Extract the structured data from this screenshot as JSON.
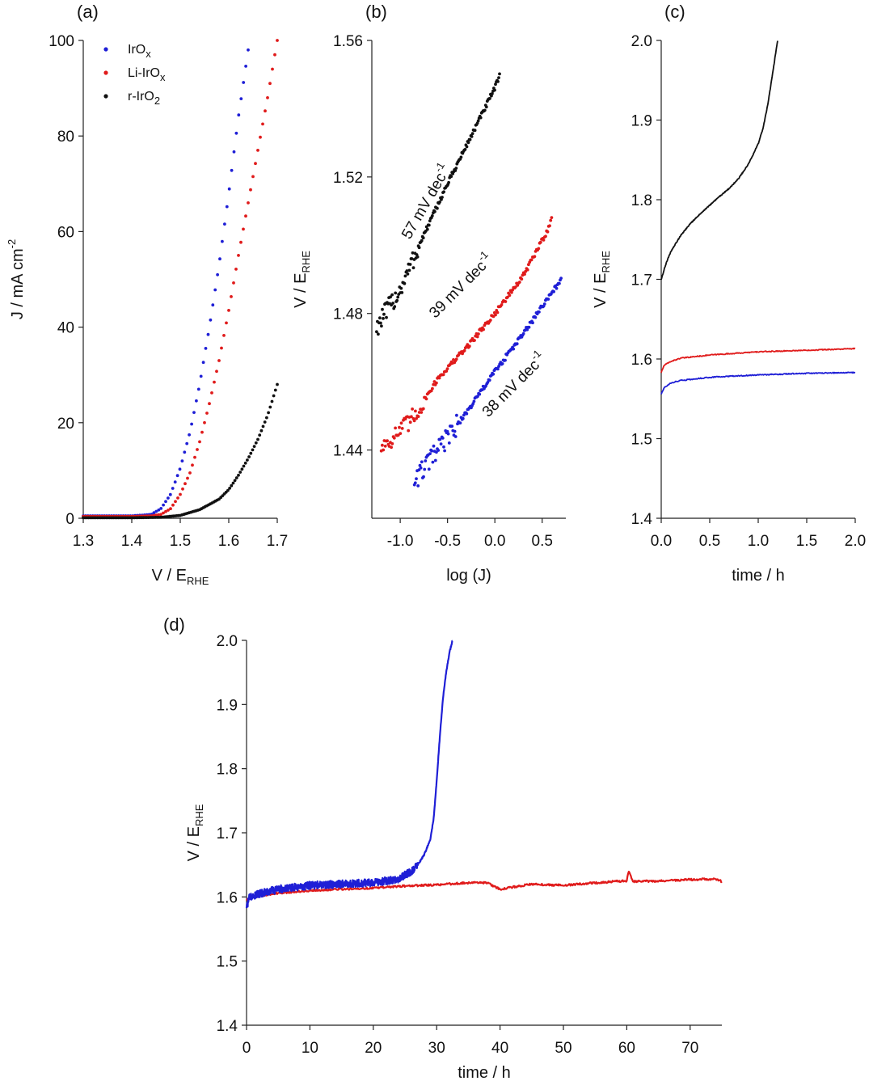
{
  "figure": {
    "colors": {
      "IrOx": "#1f1fd6",
      "Li-IrOx": "#e01b1b",
      "r-IrO2": "#111111"
    }
  },
  "chart_data": [
    {
      "id": "a",
      "panel_label": "(a)",
      "type": "scatter",
      "xlabel": {
        "main": "V / E",
        "sub": "RHE"
      },
      "ylabel": {
        "main": "J / mA cm",
        "sup": "-2"
      },
      "xlim": [
        1.3,
        1.7
      ],
      "ylim": [
        0,
        100
      ],
      "xticks": [
        1.3,
        1.4,
        1.5,
        1.6,
        1.7
      ],
      "xtick_labels": [
        "1.3",
        "1.4",
        "1.5",
        "1.6",
        "1.7"
      ],
      "yticks": [
        0,
        20,
        40,
        60,
        80,
        100
      ],
      "ytick_labels": [
        "0",
        "20",
        "40",
        "60",
        "80",
        "100"
      ],
      "legend_position": "top-left",
      "series": [
        {
          "key": "IrOx",
          "name": "IrO",
          "name_sub": "x",
          "x": [
            1.3,
            1.35,
            1.4,
            1.44,
            1.46,
            1.48,
            1.5,
            1.52,
            1.54,
            1.56,
            1.58,
            1.6,
            1.62,
            1.64
          ],
          "y": [
            0.5,
            0.5,
            0.5,
            0.8,
            2.0,
            5.0,
            10.5,
            18.0,
            28.0,
            40.0,
            53.0,
            68.0,
            84.0,
            98.0
          ]
        },
        {
          "key": "Li-IrOx",
          "name": "Li-IrO",
          "name_sub": "x",
          "x": [
            1.3,
            1.35,
            1.4,
            1.44,
            1.46,
            1.48,
            1.5,
            1.52,
            1.54,
            1.56,
            1.58,
            1.6,
            1.62,
            1.64,
            1.66,
            1.68,
            1.7
          ],
          "y": [
            0.4,
            0.4,
            0.4,
            0.5,
            0.8,
            2.0,
            5.0,
            9.5,
            16.0,
            24.0,
            33.0,
            43.5,
            55.0,
            66.0,
            77.0,
            88.0,
            100.0
          ]
        },
        {
          "key": "r-IrO2",
          "name": "r-IrO",
          "name_sub": "2",
          "x": [
            1.3,
            1.4,
            1.46,
            1.5,
            1.54,
            1.58,
            1.6,
            1.62,
            1.64,
            1.66,
            1.68,
            1.7
          ],
          "y": [
            0.1,
            0.1,
            0.2,
            0.6,
            1.8,
            4.0,
            6.0,
            9.0,
            12.5,
            16.5,
            21.5,
            28.0
          ]
        }
      ]
    },
    {
      "id": "b",
      "panel_label": "(b)",
      "type": "scatter",
      "xlabel": {
        "main": "log (J)"
      },
      "ylabel": {
        "main": "V / E",
        "sub": "RHE"
      },
      "xlim": [
        -1.3,
        0.75
      ],
      "ylim": [
        1.42,
        1.56
      ],
      "xticks": [
        -1.0,
        -0.5,
        0.0,
        0.5
      ],
      "xtick_labels": [
        "-1.0",
        "-0.5",
        "0.0",
        "0.5"
      ],
      "yticks": [
        1.44,
        1.48,
        1.52,
        1.56
      ],
      "ytick_labels": [
        "1.44",
        "1.48",
        "1.52",
        "1.56"
      ],
      "series": [
        {
          "key": "r-IrO2",
          "x": [
            -1.25,
            -1.0,
            -0.75,
            -0.5,
            -0.25,
            0.0,
            0.05
          ],
          "y": [
            1.476,
            1.487,
            1.503,
            1.518,
            1.532,
            1.546,
            1.55
          ]
        },
        {
          "key": "Li-IrOx",
          "x": [
            -1.2,
            -0.9,
            -0.6,
            -0.3,
            0.0,
            0.3,
            0.55,
            0.6
          ],
          "y": [
            1.441,
            1.448,
            1.461,
            1.47,
            1.48,
            1.491,
            1.504,
            1.508
          ]
        },
        {
          "key": "IrOx",
          "x": [
            -0.85,
            -0.6,
            -0.3,
            0.0,
            0.3,
            0.55,
            0.7
          ],
          "y": [
            1.431,
            1.44,
            1.451,
            1.463,
            1.474,
            1.484,
            1.49
          ]
        }
      ],
      "annotations": [
        {
          "text": "57 mV dec",
          "sup": "-1",
          "color_key": "r-IrO2",
          "x": -0.68,
          "y": 1.512,
          "rotate": -60
        },
        {
          "text": "39 mV dec",
          "sup": "-1",
          "color_key": "Li-IrOx",
          "x": -0.32,
          "y": 1.487,
          "rotate": -45
        },
        {
          "text": "38 mV dec",
          "sup": "-1",
          "color_key": "IrOx",
          "x": 0.24,
          "y": 1.458,
          "rotate": -45
        }
      ]
    },
    {
      "id": "c",
      "panel_label": "(c)",
      "type": "line",
      "xlabel": {
        "main": "time / h"
      },
      "ylabel": {
        "main": "V / E",
        "sub": "RHE"
      },
      "xlim": [
        0,
        2.0
      ],
      "ylim": [
        1.4,
        2.0
      ],
      "xticks": [
        0.0,
        0.5,
        1.0,
        1.5,
        2.0
      ],
      "xtick_labels": [
        "0.0",
        "0.5",
        "1.0",
        "1.5",
        "2.0"
      ],
      "yticks": [
        1.4,
        1.5,
        1.6,
        1.7,
        1.8,
        1.9,
        2.0
      ],
      "ytick_labels": [
        "1.4",
        "1.5",
        "1.6",
        "1.7",
        "1.8",
        "1.9",
        "2.0"
      ],
      "series": [
        {
          "key": "r-IrO2",
          "x": [
            0,
            0.05,
            0.1,
            0.2,
            0.3,
            0.4,
            0.5,
            0.6,
            0.7,
            0.8,
            0.9,
            1.0,
            1.05,
            1.1,
            1.15,
            1.2
          ],
          "y": [
            1.7,
            1.72,
            1.735,
            1.755,
            1.77,
            1.782,
            1.793,
            1.804,
            1.814,
            1.827,
            1.845,
            1.87,
            1.89,
            1.92,
            1.96,
            2.0
          ]
        },
        {
          "key": "Li-IrOx",
          "x": [
            0,
            0.03,
            0.1,
            0.2,
            0.5,
            1.0,
            1.5,
            2.0
          ],
          "y": [
            1.583,
            1.592,
            1.597,
            1.601,
            1.605,
            1.609,
            1.611,
            1.613
          ]
        },
        {
          "key": "IrOx",
          "x": [
            0,
            0.03,
            0.1,
            0.2,
            0.5,
            1.0,
            1.5,
            2.0
          ],
          "y": [
            1.556,
            1.564,
            1.57,
            1.573,
            1.577,
            1.58,
            1.582,
            1.583
          ]
        }
      ]
    },
    {
      "id": "d",
      "panel_label": "(d)",
      "type": "line",
      "xlabel": {
        "main": "time / h"
      },
      "ylabel": {
        "main": "V / E",
        "sub": "RHE"
      },
      "xlim": [
        0,
        75
      ],
      "ylim": [
        1.4,
        2.0
      ],
      "xticks": [
        0,
        10,
        20,
        30,
        40,
        50,
        60,
        70
      ],
      "xtick_labels": [
        "0",
        "10",
        "20",
        "30",
        "40",
        "50",
        "60",
        "70"
      ],
      "yticks": [
        1.4,
        1.5,
        1.6,
        1.7,
        1.8,
        1.9,
        2.0
      ],
      "ytick_labels": [
        "1.4",
        "1.5",
        "1.6",
        "1.7",
        "1.8",
        "1.9",
        "2.0"
      ],
      "series": [
        {
          "key": "Li-IrOx",
          "x": [
            0,
            1,
            3,
            5,
            10,
            15,
            20,
            25,
            30,
            35,
            38,
            40,
            45,
            50,
            55,
            58,
            60,
            60.3,
            61,
            65,
            70,
            74,
            75
          ],
          "y": [
            1.595,
            1.6,
            1.603,
            1.606,
            1.61,
            1.612,
            1.614,
            1.617,
            1.619,
            1.622,
            1.622,
            1.612,
            1.62,
            1.618,
            1.622,
            1.624,
            1.625,
            1.64,
            1.624,
            1.625,
            1.627,
            1.628,
            1.624
          ]
        },
        {
          "key": "IrOx",
          "x": [
            0,
            0.5,
            2,
            5,
            10,
            15,
            20,
            24,
            26,
            27,
            28,
            29,
            29.5,
            30,
            30.5,
            31,
            31.5,
            32,
            32.5
          ],
          "y": [
            1.585,
            1.6,
            1.605,
            1.612,
            1.618,
            1.62,
            1.622,
            1.628,
            1.64,
            1.65,
            1.665,
            1.69,
            1.72,
            1.78,
            1.85,
            1.91,
            1.95,
            1.98,
            2.0
          ]
        }
      ]
    }
  ]
}
